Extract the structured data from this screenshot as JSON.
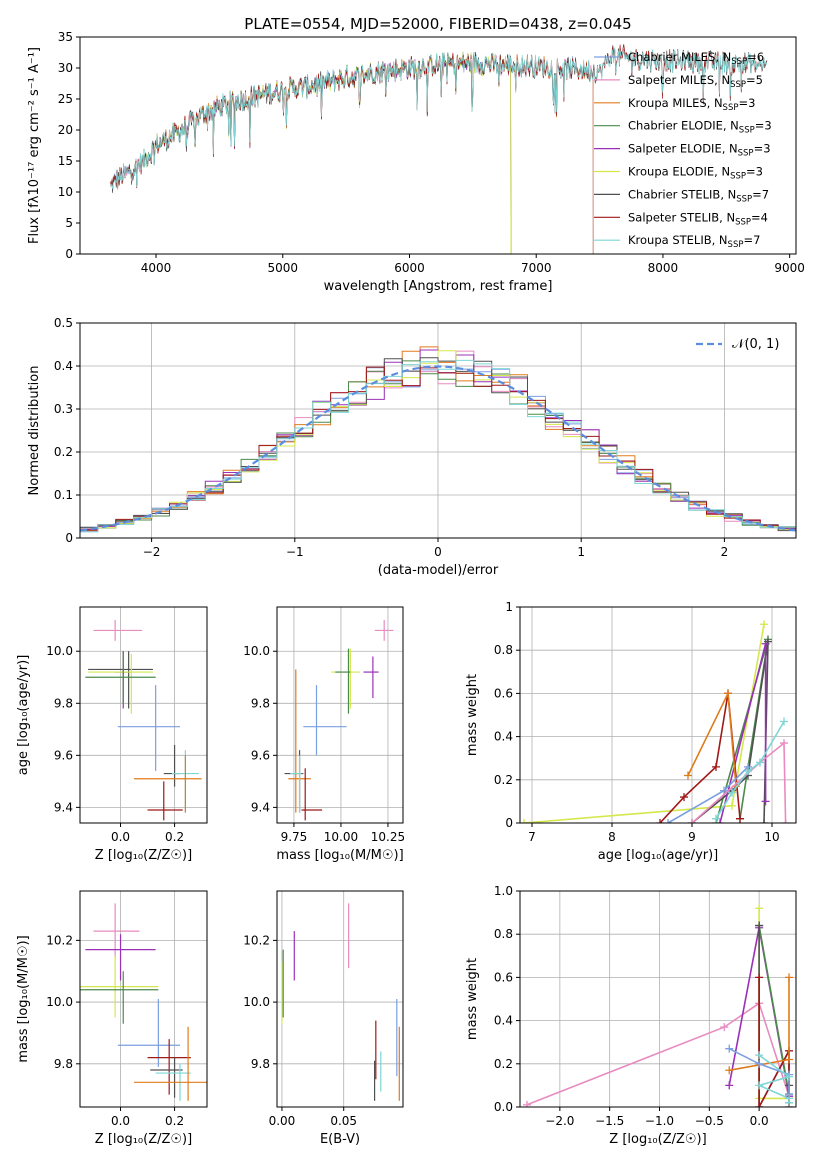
{
  "figure": {
    "title": "PLATE=0554, MJD=52000, FIBERID=0438, z=0.045"
  },
  "colors": {
    "Chabrier MILES": "#7b9fe0",
    "Salpeter MILES": "#e88bc0",
    "Kroupa MILES": "#e07b1c",
    "Chabrier ELODIE": "#4c8a4c",
    "Salpeter ELODIE": "#9b30b8",
    "Kroupa ELODIE": "#d4e84c",
    "Chabrier STELIB": "#505050",
    "Salpeter STELIB": "#a01818",
    "Kroupa STELIB": "#7ed6d6"
  },
  "chart_data": [
    {
      "id": "spectrum",
      "type": "line",
      "title": "PLATE=0554, MJD=52000, FIBERID=0438, z=0.045",
      "xlabel": "wavelength [Angstrom, rest frame]",
      "ylabel": "Flux [fλ10⁻¹⁷ erg cm⁻² s⁻¹ A⁻¹]",
      "xlim": [
        3400,
        9050
      ],
      "ylim": [
        0,
        35
      ],
      "xticks": [
        4000,
        5000,
        6000,
        7000,
        8000,
        9000
      ],
      "yticks": [
        0,
        5,
        10,
        15,
        20,
        25,
        30,
        35
      ],
      "legend_position": "right",
      "legend": [
        {
          "label": "Chabrier MILES, N",
          "sub": "SSP",
          "eq": "=6"
        },
        {
          "label": "Salpeter MILES, N",
          "sub": "SSP",
          "eq": "=5"
        },
        {
          "label": "Kroupa MILES, N",
          "sub": "SSP",
          "eq": "=3"
        },
        {
          "label": "Chabrier ELODIE, N",
          "sub": "SSP",
          "eq": "=3"
        },
        {
          "label": "Salpeter ELODIE, N",
          "sub": "SSP",
          "eq": "=3"
        },
        {
          "label": "Kroupa ELODIE, N",
          "sub": "SSP",
          "eq": "=3"
        },
        {
          "label": "Chabrier STELIB, N",
          "sub": "SSP",
          "eq": "=7"
        },
        {
          "label": "Salpeter STELIB, N",
          "sub": "SSP",
          "eq": "=4"
        },
        {
          "label": "Kroupa STELIB, N",
          "sub": "SSP",
          "eq": "=7"
        }
      ],
      "continuum": {
        "x": [
          3640,
          3700,
          3800,
          3900,
          4000,
          4200,
          4400,
          4600,
          4800,
          5000,
          5200,
          5500,
          5800,
          6000,
          6200,
          6500,
          6800,
          7000,
          7200,
          7500,
          7600,
          7800,
          8000,
          8200,
          8500,
          8800
        ],
        "y": [
          11,
          12,
          13.5,
          15,
          17.5,
          20,
          23,
          24.5,
          25.5,
          26.5,
          27,
          28.5,
          29.5,
          30,
          30.5,
          30.8,
          30.5,
          30.3,
          30,
          29.5,
          32,
          31.5,
          31.2,
          31,
          30.8,
          30.5
        ]
      },
      "series_extent": [
        {
          "name": "Chabrier MILES",
          "xmin": 3650,
          "xmax": 7450
        },
        {
          "name": "Salpeter MILES",
          "xmin": 3650,
          "xmax": 7450
        },
        {
          "name": "Kroupa MILES",
          "xmin": 3650,
          "xmax": 7450
        },
        {
          "name": "Chabrier ELODIE",
          "xmin": 3900,
          "xmax": 6800
        },
        {
          "name": "Salpeter ELODIE",
          "xmin": 3900,
          "xmax": 6800
        },
        {
          "name": "Kroupa ELODIE",
          "xmin": 3900,
          "xmax": 6800
        },
        {
          "name": "Chabrier STELIB",
          "xmin": 3640,
          "xmax": 8820
        },
        {
          "name": "Salpeter STELIB",
          "xmin": 3640,
          "xmax": 8820
        },
        {
          "name": "Kroupa STELIB",
          "xmin": 3640,
          "xmax": 8820
        }
      ]
    },
    {
      "id": "residuals",
      "type": "histogram",
      "xlabel": "(data-model)/error",
      "ylabel": "Normed distribution",
      "xlim": [
        -2.5,
        2.5
      ],
      "ylim": [
        0,
        0.5
      ],
      "xticks": [
        -2,
        -1,
        0,
        1,
        2
      ],
      "yticks": [
        0.0,
        0.1,
        0.2,
        0.3,
        0.4,
        0.5
      ],
      "grid": true,
      "bin_width": 0.125,
      "reference": {
        "label": "𝒩(0, 1)",
        "mean": 0,
        "sigma": 1,
        "style": "dashed"
      },
      "legend_position": "top-right"
    },
    {
      "id": "age-vs-Z",
      "type": "errorbar",
      "xlabel": "Z [log₁₀(Z/Z☉)]",
      "ylabel": "age  [log₁₀(age/yr)]",
      "xlim": [
        -0.15,
        0.32
      ],
      "ylim": [
        9.34,
        10.17
      ],
      "xticks": [
        0.0,
        0.2
      ],
      "yticks": [
        9.4,
        9.6,
        9.8,
        10.0
      ],
      "grid": true,
      "points": [
        {
          "name": "Salpeter MILES",
          "x": -0.02,
          "y": 10.08,
          "xlo": -0.1,
          "xhi": 0.08,
          "ylo": 10.04,
          "yhi": 10.12
        },
        {
          "name": "Chabrier STELIB",
          "x": 0.03,
          "y": 9.93,
          "xlo": -0.12,
          "xhi": 0.12,
          "ylo": 9.78,
          "yhi": 10.0
        },
        {
          "name": "Salpeter ELODIE",
          "x": 0.01,
          "y": 9.92,
          "xlo": -0.02,
          "xhi": 0.04,
          "ylo": 9.78,
          "yhi": 10.0
        },
        {
          "name": "Kroupa ELODIE",
          "x": 0.04,
          "y": 9.92,
          "xlo": -0.12,
          "xhi": 0.12,
          "ylo": 9.76,
          "yhi": 9.99
        },
        {
          "name": "Chabrier ELODIE",
          "x": 0.01,
          "y": 9.9,
          "xlo": -0.13,
          "xhi": 0.13,
          "ylo": 9.8,
          "yhi": 10.0
        },
        {
          "name": "Chabrier MILES",
          "x": 0.13,
          "y": 9.71,
          "xlo": -0.01,
          "xhi": 0.22,
          "ylo": 9.54,
          "yhi": 9.87
        },
        {
          "name": "Chabrier STELIB",
          "x": 0.2,
          "y": 9.53,
          "xlo": 0.16,
          "xhi": 0.22,
          "ylo": 9.48,
          "yhi": 9.64
        },
        {
          "name": "Kroupa STELIB",
          "x": 0.24,
          "y": 9.53,
          "xlo": 0.19,
          "xhi": 0.29,
          "ylo": 9.38,
          "yhi": 9.62
        },
        {
          "name": "Kroupa MILES",
          "x": 0.24,
          "y": 9.51,
          "xlo": 0.05,
          "xhi": 0.3,
          "ylo": 9.38,
          "yhi": 9.6
        },
        {
          "name": "Salpeter STELIB",
          "x": 0.16,
          "y": 9.39,
          "xlo": 0.1,
          "xhi": 0.23,
          "ylo": 9.35,
          "yhi": 9.5
        }
      ]
    },
    {
      "id": "age-vs-mass",
      "type": "errorbar",
      "xlabel": "mass [log₁₀(M/M☉)]",
      "ylabel": "",
      "xlim": [
        9.66,
        10.33
      ],
      "ylim": [
        9.34,
        10.17
      ],
      "xticks": [
        9.75,
        10.0,
        10.25
      ],
      "yticks": [
        9.4,
        9.6,
        9.8,
        10.0
      ],
      "grid": true,
      "points": [
        {
          "name": "Salpeter MILES",
          "x": 10.23,
          "y": 10.08,
          "xlo": 10.18,
          "xhi": 10.28,
          "ylo": 10.04,
          "yhi": 10.12
        },
        {
          "name": "Kroupa ELODIE",
          "x": 10.05,
          "y": 9.92,
          "xlo": 9.95,
          "xhi": 10.1,
          "ylo": 9.78,
          "yhi": 10.01
        },
        {
          "name": "Chabrier ELODIE",
          "x": 10.04,
          "y": 9.92,
          "xlo": 9.97,
          "xhi": 10.05,
          "ylo": 9.76,
          "yhi": 10.01
        },
        {
          "name": "Salpeter ELODIE",
          "x": 10.17,
          "y": 9.92,
          "xlo": 10.12,
          "xhi": 10.2,
          "ylo": 9.82,
          "yhi": 9.98
        },
        {
          "name": "Chabrier MILES",
          "x": 9.87,
          "y": 9.71,
          "xlo": 9.8,
          "xhi": 10.03,
          "ylo": 9.6,
          "yhi": 9.87
        },
        {
          "name": "Kroupa MILES",
          "x": 9.76,
          "y": 9.51,
          "xlo": 9.72,
          "xhi": 9.84,
          "ylo": 9.38,
          "yhi": 9.93
        },
        {
          "name": "Chabrier STELIB",
          "x": 9.78,
          "y": 9.53,
          "xlo": 9.7,
          "xhi": 9.8,
          "ylo": 9.38,
          "yhi": 9.62
        },
        {
          "name": "Kroupa STELIB",
          "x": 9.78,
          "y": 9.53,
          "xlo": 9.73,
          "xhi": 9.79,
          "ylo": 9.38,
          "yhi": 9.6
        },
        {
          "name": "Salpeter STELIB",
          "x": 9.81,
          "y": 9.39,
          "xlo": 9.79,
          "xhi": 9.9,
          "ylo": 9.35,
          "yhi": 9.55
        }
      ]
    },
    {
      "id": "weight-vs-age",
      "type": "line",
      "xlabel": "age  [log₁₀(age/yr)]",
      "ylabel": "mass weight",
      "xlim": [
        6.85,
        10.3
      ],
      "ylim": [
        0,
        1
      ],
      "xticks": [
        7,
        8,
        9,
        10
      ],
      "yticks": [
        0.0,
        0.2,
        0.4,
        0.6,
        0.8,
        1.0
      ],
      "grid": true,
      "series": [
        {
          "name": "Kroupa ELODIE",
          "x": [
            6.9,
            9.5,
            9.9
          ],
          "y": [
            0.0,
            0.08,
            0.92
          ]
        },
        {
          "name": "Chabrier ELODIE",
          "x": [
            9.3,
            9.95,
            9.6
          ],
          "y": [
            0.0,
            0.85,
            0.02
          ]
        },
        {
          "name": "Chabrier STELIB",
          "x": [
            9.0,
            9.5,
            9.7,
            9.95,
            9.9
          ],
          "y": [
            0.0,
            0.15,
            0.22,
            0.84,
            0.0
          ]
        },
        {
          "name": "Salpeter ELODIE",
          "x": [
            9.35,
            9.92,
            9.92
          ],
          "y": [
            0.0,
            0.83,
            0.1
          ]
        },
        {
          "name": "Salpeter STELIB",
          "x": [
            8.6,
            8.9,
            9.3,
            9.45,
            9.6
          ],
          "y": [
            0.0,
            0.12,
            0.26,
            0.6,
            0.02
          ]
        },
        {
          "name": "Kroupa MILES",
          "x": [
            8.95,
            9.45,
            9.55
          ],
          "y": [
            0.22,
            0.6,
            0.17
          ]
        },
        {
          "name": "Chabrier MILES",
          "x": [
            8.7,
            9.4,
            9.7
          ],
          "y": [
            0.0,
            0.15,
            0.26
          ]
        },
        {
          "name": "Salpeter MILES",
          "x": [
            9.0,
            9.85,
            10.15,
            10.17
          ],
          "y": [
            0.0,
            0.28,
            0.37,
            0.0
          ]
        },
        {
          "name": "Kroupa STELIB",
          "x": [
            9.3,
            9.5,
            9.7,
            9.85,
            10.15
          ],
          "y": [
            0.02,
            0.14,
            0.24,
            0.28,
            0.47
          ]
        }
      ]
    },
    {
      "id": "mass-vs-Z",
      "type": "errorbar",
      "xlabel": "Z [log₁₀(Z/Z☉)]",
      "ylabel": "mass [log₁₀(M/M☉)]",
      "xlim": [
        -0.15,
        0.32
      ],
      "ylim": [
        9.66,
        10.36
      ],
      "xticks": [
        0.0,
        0.2
      ],
      "yticks": [
        9.8,
        10.0,
        10.2
      ],
      "grid": true,
      "points": [
        {
          "name": "Salpeter MILES",
          "x": -0.02,
          "y": 10.23,
          "xlo": -0.1,
          "xhi": 0.07,
          "ylo": 10.14,
          "yhi": 10.32
        },
        {
          "name": "Salpeter ELODIE",
          "x": 0.0,
          "y": 10.17,
          "xlo": -0.13,
          "xhi": 0.13,
          "ylo": 10.07,
          "yhi": 10.22
        },
        {
          "name": "Kroupa ELODIE",
          "x": -0.02,
          "y": 10.05,
          "xlo": -0.15,
          "xhi": 0.14,
          "ylo": 9.95,
          "yhi": 10.15
        },
        {
          "name": "Chabrier ELODIE",
          "x": 0.01,
          "y": 10.04,
          "xlo": -0.15,
          "xhi": 0.14,
          "ylo": 9.93,
          "yhi": 10.1
        },
        {
          "name": "Chabrier MILES",
          "x": 0.14,
          "y": 9.86,
          "xlo": -0.01,
          "xhi": 0.22,
          "ylo": 9.79,
          "yhi": 10.01
        },
        {
          "name": "Salpeter STELIB",
          "x": 0.18,
          "y": 9.82,
          "xlo": 0.1,
          "xhi": 0.26,
          "ylo": 9.7,
          "yhi": 9.88
        },
        {
          "name": "Chabrier STELIB",
          "x": 0.2,
          "y": 9.78,
          "xlo": 0.11,
          "xhi": 0.23,
          "ylo": 9.69,
          "yhi": 9.82
        },
        {
          "name": "Kroupa STELIB",
          "x": 0.22,
          "y": 9.77,
          "xlo": 0.13,
          "xhi": 0.26,
          "ylo": 9.68,
          "yhi": 9.8
        },
        {
          "name": "Kroupa MILES",
          "x": 0.25,
          "y": 9.74,
          "xlo": 0.05,
          "xhi": 0.32,
          "ylo": 9.68,
          "yhi": 9.92
        }
      ]
    },
    {
      "id": "mass-vs-ebv",
      "type": "errorbar",
      "xlabel": "E(B-V)",
      "ylabel": "",
      "xlim": [
        -0.004,
        0.098
      ],
      "ylim": [
        9.66,
        10.36
      ],
      "xticks": [
        0.0,
        0.05
      ],
      "yticks": [
        9.8,
        10.0,
        10.2
      ],
      "grid": true,
      "points": [
        {
          "name": "Salpeter MILES",
          "x": 0.054,
          "y": 10.23,
          "xlo": 0.054,
          "xhi": 0.054,
          "ylo": 10.11,
          "yhi": 10.32
        },
        {
          "name": "Salpeter ELODIE",
          "x": 0.01,
          "y": 10.17,
          "xlo": 0.01,
          "xhi": 0.01,
          "ylo": 10.07,
          "yhi": 10.23
        },
        {
          "name": "Kroupa ELODIE",
          "x": 0.0,
          "y": 10.05,
          "xlo": 0.0,
          "xhi": 0.0,
          "ylo": 9.93,
          "yhi": 10.13
        },
        {
          "name": "Chabrier ELODIE",
          "x": 0.001,
          "y": 10.05,
          "xlo": 0.001,
          "xhi": 0.001,
          "ylo": 9.95,
          "yhi": 10.17
        },
        {
          "name": "Chabrier MILES",
          "x": 0.093,
          "y": 9.88,
          "xlo": 0.093,
          "xhi": 0.093,
          "ylo": 9.76,
          "yhi": 10.01
        },
        {
          "name": "Salpeter STELIB",
          "x": 0.076,
          "y": 9.82,
          "xlo": 0.076,
          "xhi": 0.076,
          "ylo": 9.75,
          "yhi": 9.94
        },
        {
          "name": "Chabrier STELIB",
          "x": 0.075,
          "y": 9.78,
          "xlo": 0.075,
          "xhi": 0.075,
          "ylo": 9.68,
          "yhi": 9.81
        },
        {
          "name": "Kroupa STELIB",
          "x": 0.08,
          "y": 9.78,
          "xlo": 0.08,
          "xhi": 0.08,
          "ylo": 9.71,
          "yhi": 9.84
        },
        {
          "name": "Kroupa MILES",
          "x": 0.095,
          "y": 9.74,
          "xlo": 0.095,
          "xhi": 0.095,
          "ylo": 9.68,
          "yhi": 9.92
        }
      ]
    },
    {
      "id": "weight-vs-Z",
      "type": "line",
      "xlabel": "Z [log₁₀(Z/Z☉)]",
      "ylabel": "mass weight",
      "xlim": [
        -2.4,
        0.37
      ],
      "ylim": [
        0,
        1
      ],
      "xticks": [
        -2.0,
        -1.5,
        -1.0,
        -0.5,
        0.0
      ],
      "yticks": [
        0.0,
        0.2,
        0.4,
        0.6,
        0.8,
        1.0
      ],
      "grid": true,
      "series": [
        {
          "name": "Salpeter MILES",
          "x": [
            -2.33,
            -0.35,
            0.0,
            0.3
          ],
          "y": [
            0.01,
            0.37,
            0.48,
            0.05
          ]
        },
        {
          "name": "Kroupa ELODIE",
          "x": [
            0.0,
            0.0,
            0.3
          ],
          "y": [
            0.92,
            0.04,
            0.04
          ]
        },
        {
          "name": "Salpeter ELODIE",
          "x": [
            -0.3,
            0.0,
            0.3
          ],
          "y": [
            0.1,
            0.83,
            0.05
          ]
        },
        {
          "name": "Chabrier ELODIE",
          "x": [
            0.0,
            0.3,
            0.3
          ],
          "y": [
            0.84,
            0.06,
            0.02
          ]
        },
        {
          "name": "Chabrier STELIB",
          "x": [
            0.0,
            0.0,
            0.3,
            0.3
          ],
          "y": [
            0.84,
            0.0,
            0.26,
            0.1
          ]
        },
        {
          "name": "Salpeter STELIB",
          "x": [
            0.0,
            0.0,
            0.3,
            0.3
          ],
          "y": [
            0.6,
            0.0,
            0.26,
            0.0
          ]
        },
        {
          "name": "Kroupa MILES",
          "x": [
            -0.3,
            0.3,
            0.3
          ],
          "y": [
            0.17,
            0.22,
            0.6
          ]
        },
        {
          "name": "Chabrier MILES",
          "x": [
            -0.3,
            0.0,
            0.3,
            0.3
          ],
          "y": [
            0.27,
            0.2,
            0.15,
            0.06
          ]
        },
        {
          "name": "Kroupa STELIB",
          "x": [
            0.0,
            0.3,
            0.0,
            0.3,
            0.3
          ],
          "y": [
            0.24,
            0.14,
            0.1,
            0.04,
            0.02
          ]
        }
      ]
    }
  ]
}
